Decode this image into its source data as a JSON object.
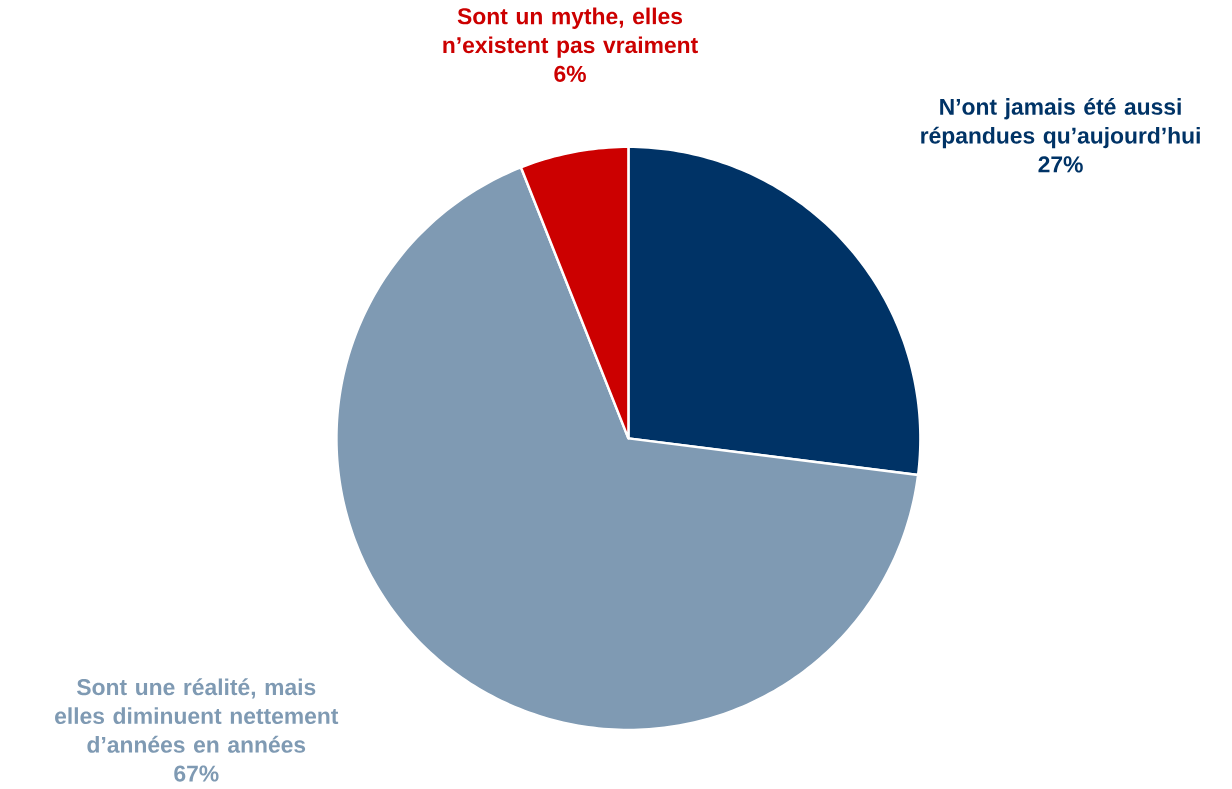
{
  "chart_data": {
    "type": "pie",
    "categories": [
      "N’ont jamais été aussi répandues qu’aujourd’hui",
      "Sont une réalité, mais elles diminuent nettement d’années en années",
      "Sont un mythe, elles n’existent pas vraiment"
    ],
    "values": [
      27,
      67,
      6
    ],
    "colors": [
      "#003366",
      "#7f9ab3",
      "#cc0000"
    ],
    "value_labels": [
      "27%",
      "67%",
      "6%"
    ]
  }
}
